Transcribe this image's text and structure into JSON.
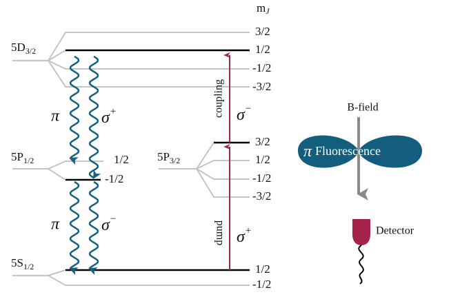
{
  "mj_header": {
    "main": "m",
    "sub": "J"
  },
  "levels": [
    {
      "name": {
        "main": "5D",
        "sub": "3/2"
      },
      "sublevels": [
        "3/2",
        "1/2",
        "-1/2",
        "-3/2"
      ]
    },
    {
      "name": {
        "main": "5P",
        "sub": "1/2"
      },
      "sublevels": [
        "1/2",
        "-1/2"
      ]
    },
    {
      "name": {
        "main": "5S",
        "sub": "1/2"
      },
      "sublevels": [
        "1/2",
        "-1/2"
      ]
    },
    {
      "name": {
        "main": "5P",
        "sub": "3/2"
      },
      "sublevels": [
        "3/2",
        "1/2",
        "-1/2",
        "-3/2"
      ]
    }
  ],
  "transitions": {
    "upper_pi": "π",
    "upper_sigma": {
      "main": "σ",
      "sup": "+"
    },
    "lower_pi": "π",
    "lower_sigma": {
      "main": "σ",
      "sup": "−"
    },
    "coupling": "coupling",
    "coupling_sigma": {
      "main": "σ",
      "sup": "−"
    },
    "pump": "pump",
    "pump_sigma": {
      "main": "σ",
      "sup": "+"
    }
  },
  "b_field": "B-field",
  "fluorescence": {
    "symbol": "π",
    "text": "Fluorescence"
  },
  "detector": "Detector"
}
